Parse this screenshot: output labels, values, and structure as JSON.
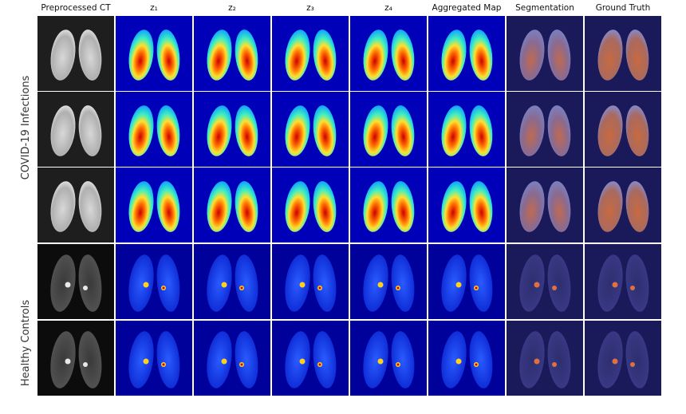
{
  "figure": {
    "columns": [
      "Preprocessed CT",
      "z₁",
      "z₂",
      "z₃",
      "z₄",
      "Aggregated Map",
      "Segmentation",
      "Ground Truth"
    ],
    "row_groups": [
      {
        "label": "COVID-19 Infections"
      },
      {
        "label": "Healthy Controls"
      }
    ]
  }
}
